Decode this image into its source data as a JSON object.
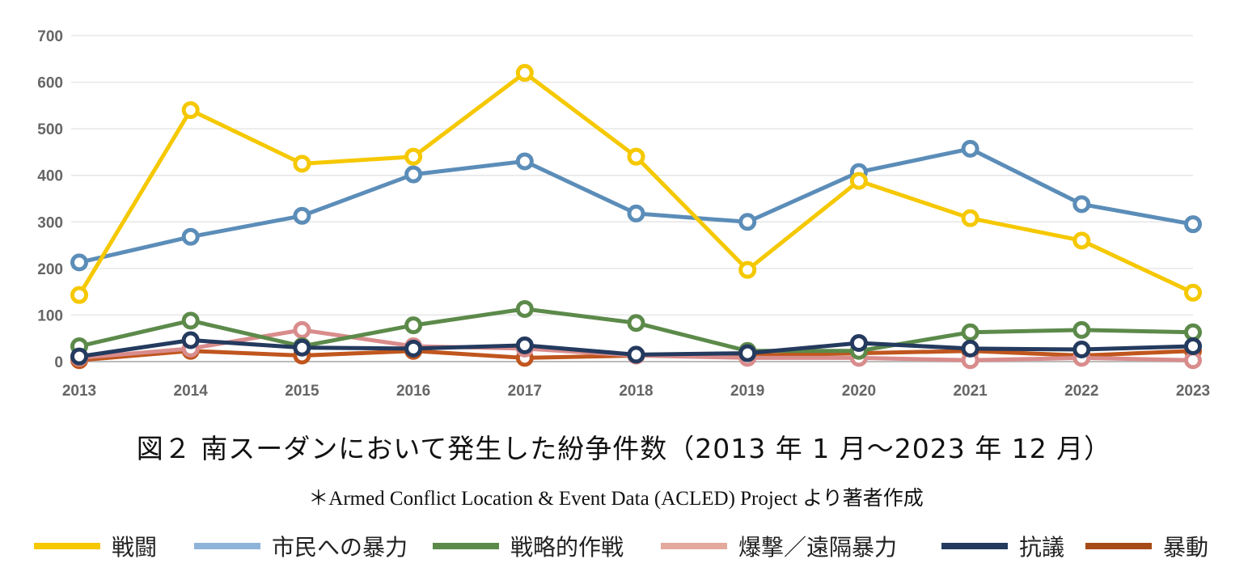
{
  "chart_data": {
    "type": "line",
    "title": "図２ 南スーダンにおいて発生した紛争件数（2013 年 1 月〜2023 年 12 月）",
    "subtitle": "＊Armed Conflict Location & Event Data (ACLED) Project より著者作成",
    "xlabel": "",
    "ylabel": "",
    "x": [
      "2013",
      "2014",
      "2015",
      "2016",
      "2017",
      "2018",
      "2019",
      "2020",
      "2021",
      "2022",
      "2023"
    ],
    "ylim": [
      0,
      700
    ],
    "yticks": [
      "0",
      "100",
      "200",
      "300",
      "400",
      "500",
      "600",
      "700"
    ],
    "grid": true,
    "legend_position": "bottom",
    "series": [
      {
        "name": "戦闘",
        "color": "#F5C800",
        "values": [
          143,
          540,
          425,
          440,
          620,
          440,
          197,
          388,
          308,
          260,
          148
        ]
      },
      {
        "name": "市民への暴力",
        "color": "#5B8DB8",
        "values": [
          213,
          268,
          313,
          402,
          430,
          318,
          300,
          407,
          457,
          338,
          295
        ]
      },
      {
        "name": "戦略的作戦",
        "color": "#5C8A4A",
        "values": [
          33,
          88,
          33,
          78,
          113,
          83,
          23,
          23,
          63,
          68,
          63
        ]
      },
      {
        "name": "爆撃／遠隔暴力",
        "color": "#D98C8C",
        "values": [
          8,
          28,
          68,
          33,
          28,
          13,
          8,
          8,
          3,
          8,
          3
        ]
      },
      {
        "name": "抗議",
        "color": "#243A5E",
        "values": [
          11,
          46,
          30,
          28,
          35,
          15,
          18,
          40,
          28,
          26,
          33
        ]
      },
      {
        "name": "暴動",
        "color": "#C0561E",
        "values": [
          3,
          23,
          13,
          23,
          8,
          13,
          13,
          18,
          23,
          13,
          23
        ]
      }
    ]
  },
  "legend_colors": {
    "戦闘": "#F5C800",
    "市民への暴力": "#8FB4D9",
    "戦略的作戦": "#5C8A4A",
    "爆撃／遠隔暴力": "#E3A99C",
    "抗議": "#243A5E",
    "暴動": "#A64B17"
  }
}
